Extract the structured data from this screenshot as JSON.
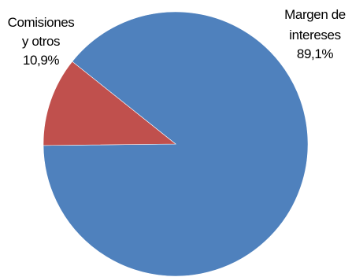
{
  "chart_data": {
    "type": "pie",
    "title": "",
    "start_angle_deg": 141.4,
    "direction": "clockwise",
    "slices": [
      {
        "name": "Margen de intereses",
        "label_lines": [
          "Margen de",
          "intereses"
        ],
        "value": 89.1,
        "value_label": "89,1%",
        "color": "#4F81BD"
      },
      {
        "name": "Comisiones y otros",
        "label_lines": [
          "Comisiones",
          "y otros"
        ],
        "value": 10.9,
        "value_label": "10,9%",
        "color": "#C0504D"
      }
    ],
    "legend": "none"
  }
}
